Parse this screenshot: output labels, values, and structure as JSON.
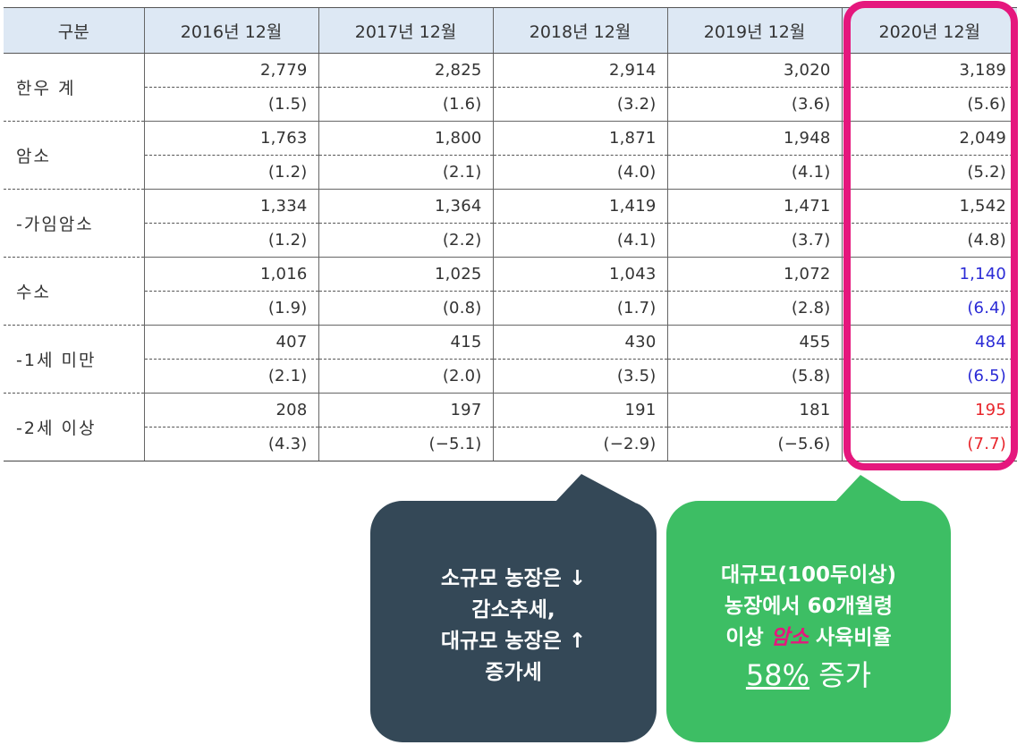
{
  "table": {
    "headers": [
      "구분",
      "2016년 12월",
      "2017년 12월",
      "2018년 12월",
      "2019년 12월",
      "2020년 12월"
    ],
    "rows": [
      {
        "label": "한우 계",
        "values": [
          "2,779",
          "2,825",
          "2,914",
          "3,020",
          "3,189"
        ],
        "pcts": [
          "(1.5)",
          "(1.6)",
          "(3.2)",
          "(3.6)",
          "(5.6)"
        ]
      },
      {
        "label": "암소",
        "values": [
          "1,763",
          "1,800",
          "1,871",
          "1,948",
          "2,049"
        ],
        "pcts": [
          "(1.2)",
          "(2.1)",
          "(4.0)",
          "(4.1)",
          "(5.2)"
        ]
      },
      {
        "label": "-가임암소",
        "values": [
          "1,334",
          "1,364",
          "1,419",
          "1,471",
          "1,542"
        ],
        "pcts": [
          "(1.2)",
          "(2.2)",
          "(4.1)",
          "(3.7)",
          "(4.8)"
        ]
      },
      {
        "label": "수소",
        "values": [
          "1,016",
          "1,025",
          "1,043",
          "1,072",
          "1,140"
        ],
        "pcts": [
          "(1.9)",
          "(0.8)",
          "(1.7)",
          "(2.8)",
          "(6.4)"
        ]
      },
      {
        "label": "-1세 미만",
        "values": [
          "407",
          "415",
          "430",
          "455",
          "484"
        ],
        "pcts": [
          "(2.1)",
          "(2.0)",
          "(3.5)",
          "(5.8)",
          "(6.5)"
        ]
      },
      {
        "label": "-2세 이상",
        "values": [
          "208",
          "197",
          "191",
          "181",
          "195"
        ],
        "pcts": [
          "(4.3)",
          "(−5.1)",
          "(−2.9)",
          "(−5.6)",
          "(7.7)"
        ]
      }
    ]
  },
  "callout_left": {
    "line1": "소규모 농장은 ↓",
    "line2": "감소추세,",
    "line3": "대규모 농장은 ↑",
    "line4": "증가세"
  },
  "callout_right": {
    "line1": "대규모(100두이상)",
    "line2": "농장에서 60개월령",
    "line3_pre": "이상 ",
    "line3_em": "암소",
    "line3_post": " 사육비율",
    "line4_pct": "58%",
    "line4_post": " 증가"
  },
  "colors": {
    "highlight": "#e5177d",
    "blue_values": "#2b2bd6",
    "red_values": "#e8252b",
    "dark_bubble": "#344857",
    "green_bubble": "#3dbe64",
    "header_bg": "#dde8f4"
  }
}
